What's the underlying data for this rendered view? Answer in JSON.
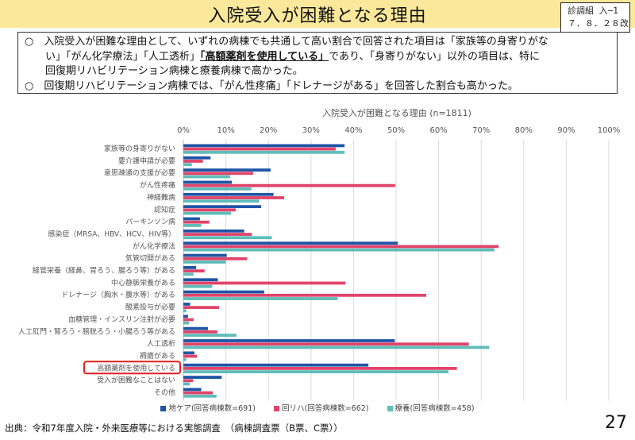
{
  "header": {
    "title": "入院受入が困難となる理由",
    "doc_ref_line1": "診調組 入−1",
    "doc_ref_line2": "７．８．２８改"
  },
  "summary": {
    "bullet1_part1": "○　入院受入が困難な理由として、いずれの病棟でも共通して高い割合で回答された項目は「家族等の身寄りがな",
    "bullet1_part2a": "い」「がん化学療法」「人工透析」",
    "bullet1_emph": "「高額薬剤を使用している」",
    "bullet1_part2b": "であり、「身寄りがない」以外の項目は、特に",
    "bullet1_part3": "回復期リハビリテーション病棟と療養病棟で高かった。",
    "bullet2": "○　回復期リハビリテーション病棟では、「がん性疼痛」「ドレナージがある」を回答した割合も高かった。"
  },
  "colors": {
    "header_bg": "#fbe89b",
    "chiiki": "#1f55a6",
    "kaifuku": "#e0446a",
    "ryoyo": "#5fbdb9",
    "highlight": "#e02020"
  },
  "chart_data": {
    "type": "bar",
    "orientation": "horizontal",
    "title": "入院受入が困難となる理由 (n=1811)",
    "xlabel": "",
    "ylabel": "",
    "xlim": [
      0,
      100
    ],
    "x_unit": "%",
    "x_ticks": [
      "0%",
      "10%",
      "20%",
      "30%",
      "40%",
      "50%",
      "60%",
      "70%",
      "80%",
      "90%",
      "100%"
    ],
    "grid": true,
    "legend_position": "bottom",
    "highlighted_category": "高額薬剤を使用している",
    "categories": [
      "家族等の身寄りがない",
      "要介護申請が必要",
      "意思疎通の支援が必要",
      "がん性疼痛",
      "神経難病",
      "認知症",
      "パーキンソン病",
      "感染症（MRSA、HBV、HCV、HIV等）",
      "がん化学療法",
      "気管切開がある",
      "経管栄養（経鼻、胃ろう、腸ろう等）がある",
      "中心静脈栄養がある",
      "ドレナージ（胸水・腹水等）がある",
      "酸素投与が必要",
      "血糖管理・インスリン注射が必要",
      "人工肛門・腎ろう・膀胱ろう・小腸ろう等がある",
      "人工透析",
      "褥瘡がある",
      "高額薬剤を使用している",
      "受入が困難なことはない",
      "その他"
    ],
    "series": [
      {
        "name": "地ケア(回答病棟数=691)",
        "color": "#1f55a6",
        "values": [
          37.9,
          6.4,
          20.5,
          11.4,
          21.2,
          18.3,
          3.9,
          14.3,
          50.4,
          10.2,
          3.0,
          8.1,
          19.0,
          1.6,
          1.1,
          5.8,
          49.7,
          2.6,
          43.5,
          9.0,
          4.2
        ]
      },
      {
        "name": "回リハ(回答病棟数=662)",
        "color": "#e0446a",
        "values": [
          35.8,
          4.6,
          16.4,
          49.8,
          23.7,
          12.3,
          6.1,
          16.1,
          74.1,
          15.0,
          5.0,
          38.1,
          57.1,
          8.4,
          2.4,
          8.0,
          67.1,
          3.2,
          64.3,
          2.3,
          6.9
        ]
      },
      {
        "name": "療養(回答病棟数=458)",
        "color": "#5fbdb9",
        "values": [
          37.9,
          2.0,
          11.0,
          16.0,
          17.8,
          11.2,
          4.2,
          20.8,
          73.1,
          10.0,
          2.4,
          6.8,
          36.3,
          0.7,
          1.3,
          12.5,
          71.9,
          0.7,
          62.3,
          1.5,
          7.8
        ]
      }
    ]
  },
  "footer": {
    "source": "出典：令和7年度入院・外来医療等における実態調査　（病棟調査票（B票、C票））",
    "page_number": "27"
  }
}
